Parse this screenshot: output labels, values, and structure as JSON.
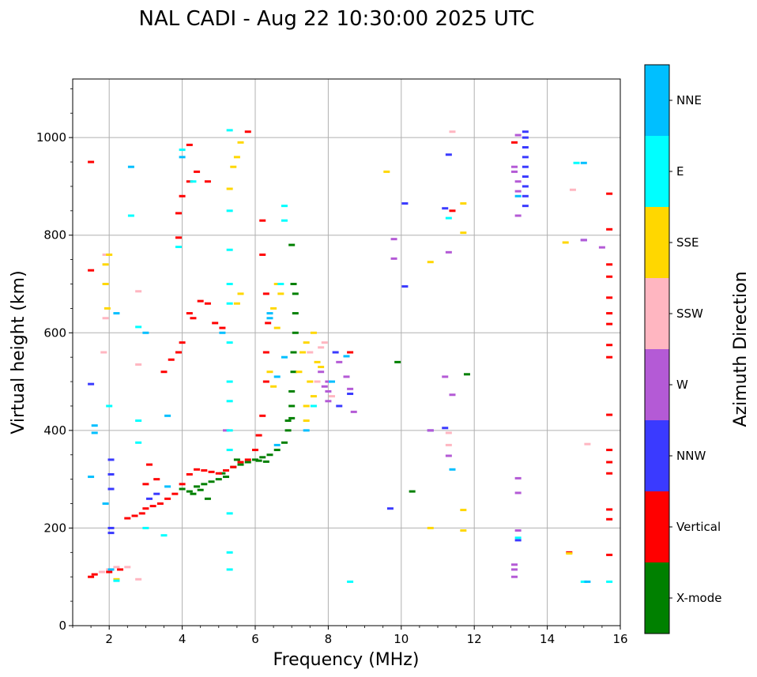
{
  "chart_data": {
    "type": "scatter",
    "title": "NAL CADI - Aug 22 10:30:00 2025 UTC",
    "xlabel": "Frequency (MHz)",
    "ylabel": "Virtual height (km)",
    "xlim": [
      1,
      16
    ],
    "ylim": [
      0,
      1120
    ],
    "x_ticks": [
      2,
      4,
      6,
      8,
      10,
      12,
      14,
      16
    ],
    "y_ticks": [
      0,
      200,
      400,
      600,
      800,
      1000
    ],
    "grid": true,
    "colorbar": {
      "label": "Azimuth Direction",
      "categories": [
        {
          "name": "X-mode",
          "color": "#008000"
        },
        {
          "name": "Vertical",
          "color": "#ff0000"
        },
        {
          "name": "NNW",
          "color": "#3a3aff"
        },
        {
          "name": "W",
          "color": "#b45ad6"
        },
        {
          "name": "SSW",
          "color": "#ffb6c1"
        },
        {
          "name": "SSE",
          "color": "#ffd700"
        },
        {
          "name": "E",
          "color": "#00ffff"
        },
        {
          "name": "NNE",
          "color": "#00bfff"
        }
      ]
    },
    "series": [
      {
        "name": "X-mode",
        "points": [
          [
            4.0,
            280
          ],
          [
            4.2,
            275
          ],
          [
            4.4,
            285
          ],
          [
            4.6,
            290
          ],
          [
            4.8,
            295
          ],
          [
            5.0,
            300
          ],
          [
            5.2,
            305
          ],
          [
            5.4,
            325
          ],
          [
            5.6,
            330
          ],
          [
            5.8,
            335
          ],
          [
            6.0,
            340
          ],
          [
            6.2,
            345
          ],
          [
            6.4,
            350
          ],
          [
            6.6,
            360
          ],
          [
            6.8,
            375
          ],
          [
            6.9,
            400
          ],
          [
            7.0,
            425
          ],
          [
            7.0,
            450
          ],
          [
            7.0,
            480
          ],
          [
            7.05,
            520
          ],
          [
            7.05,
            560
          ],
          [
            7.1,
            600
          ],
          [
            7.1,
            640
          ],
          [
            7.1,
            680
          ],
          [
            7.05,
            700
          ],
          [
            7.0,
            780
          ],
          [
            6.9,
            420
          ],
          [
            4.3,
            270
          ],
          [
            4.5,
            278
          ],
          [
            4.7,
            260
          ],
          [
            5.1,
            312
          ],
          [
            5.5,
            340
          ],
          [
            6.1,
            338
          ],
          [
            6.3,
            336
          ],
          [
            10.3,
            275
          ],
          [
            9.9,
            540
          ],
          [
            11.8,
            515
          ]
        ]
      },
      {
        "name": "Vertical",
        "points": [
          [
            1.5,
            100
          ],
          [
            1.6,
            105
          ],
          [
            2.0,
            110
          ],
          [
            2.3,
            115
          ],
          [
            2.5,
            220
          ],
          [
            2.7,
            225
          ],
          [
            2.9,
            230
          ],
          [
            3.0,
            240
          ],
          [
            3.2,
            245
          ],
          [
            3.4,
            250
          ],
          [
            3.6,
            260
          ],
          [
            3.8,
            270
          ],
          [
            4.0,
            290
          ],
          [
            4.2,
            310
          ],
          [
            4.4,
            320
          ],
          [
            4.6,
            318
          ],
          [
            4.8,
            315
          ],
          [
            5.0,
            312
          ],
          [
            5.2,
            318
          ],
          [
            5.4,
            325
          ],
          [
            5.6,
            335
          ],
          [
            5.8,
            340
          ],
          [
            6.0,
            360
          ],
          [
            6.1,
            390
          ],
          [
            6.2,
            430
          ],
          [
            6.3,
            500
          ],
          [
            6.3,
            560
          ],
          [
            6.35,
            620
          ],
          [
            6.3,
            680
          ],
          [
            6.2,
            760
          ],
          [
            6.2,
            830
          ],
          [
            3.0,
            290
          ],
          [
            3.1,
            330
          ],
          [
            3.3,
            300
          ],
          [
            3.5,
            520
          ],
          [
            3.7,
            545
          ],
          [
            3.9,
            560
          ],
          [
            4.0,
            580
          ],
          [
            4.2,
            640
          ],
          [
            4.3,
            630
          ],
          [
            4.5,
            665
          ],
          [
            4.7,
            660
          ],
          [
            4.9,
            620
          ],
          [
            5.1,
            610
          ],
          [
            3.9,
            795
          ],
          [
            3.9,
            845
          ],
          [
            4.0,
            880
          ],
          [
            4.2,
            910
          ],
          [
            4.4,
            930
          ],
          [
            4.2,
            985
          ],
          [
            4.7,
            910
          ],
          [
            5.8,
            1012
          ],
          [
            1.5,
            950
          ],
          [
            1.5,
            728
          ],
          [
            15.7,
            885
          ],
          [
            15.7,
            812
          ],
          [
            15.7,
            740
          ],
          [
            15.7,
            715
          ],
          [
            15.7,
            672
          ],
          [
            15.7,
            640
          ],
          [
            15.7,
            618
          ],
          [
            15.7,
            575
          ],
          [
            15.7,
            550
          ],
          [
            15.7,
            432
          ],
          [
            15.7,
            360
          ],
          [
            15.7,
            335
          ],
          [
            15.7,
            312
          ],
          [
            15.7,
            238
          ],
          [
            15.7,
            218
          ],
          [
            15.7,
            145
          ],
          [
            14.6,
            150
          ],
          [
            13.1,
            990
          ],
          [
            11.4,
            850
          ],
          [
            8.6,
            560
          ]
        ]
      },
      {
        "name": "NNW",
        "points": [
          [
            1.5,
            495
          ],
          [
            2.05,
            340
          ],
          [
            2.05,
            310
          ],
          [
            2.05,
            280
          ],
          [
            2.05,
            200
          ],
          [
            2.05,
            190
          ],
          [
            3.1,
            260
          ],
          [
            3.3,
            270
          ],
          [
            13.4,
            860
          ],
          [
            13.4,
            880
          ],
          [
            13.4,
            900
          ],
          [
            13.4,
            920
          ],
          [
            13.4,
            940
          ],
          [
            13.4,
            960
          ],
          [
            13.4,
            980
          ],
          [
            13.4,
            1000
          ],
          [
            13.4,
            1012
          ],
          [
            13.2,
            175
          ],
          [
            10.1,
            865
          ],
          [
            10.1,
            695
          ],
          [
            11.2,
            405
          ],
          [
            11.3,
            965
          ],
          [
            11.2,
            855
          ],
          [
            8.6,
            475
          ],
          [
            8.3,
            450
          ],
          [
            10.8,
            400
          ],
          [
            9.7,
            240
          ],
          [
            8.2,
            560
          ],
          [
            15.0,
            790
          ]
        ]
      },
      {
        "name": "W",
        "points": [
          [
            8.0,
            460
          ],
          [
            8.0,
            500
          ],
          [
            8.0,
            480
          ],
          [
            7.8,
            520
          ],
          [
            7.9,
            490
          ],
          [
            8.3,
            540
          ],
          [
            8.5,
            510
          ],
          [
            8.6,
            485
          ],
          [
            8.7,
            438
          ],
          [
            13.2,
            840
          ],
          [
            13.2,
            1005
          ],
          [
            13.1,
            940
          ],
          [
            13.1,
            930
          ],
          [
            13.2,
            910
          ],
          [
            13.2,
            890
          ],
          [
            13.2,
            302
          ],
          [
            13.2,
            272
          ],
          [
            13.2,
            195
          ],
          [
            13.1,
            125
          ],
          [
            13.1,
            115
          ],
          [
            13.1,
            100
          ],
          [
            15.5,
            775
          ],
          [
            15.0,
            790
          ],
          [
            11.3,
            765
          ],
          [
            11.3,
            348
          ],
          [
            11.2,
            510
          ],
          [
            11.4,
            473
          ],
          [
            9.8,
            792
          ],
          [
            9.8,
            752
          ],
          [
            10.8,
            400
          ],
          [
            5.2,
            400
          ]
        ]
      },
      {
        "name": "SSW",
        "points": [
          [
            1.8,
            110
          ],
          [
            2.0,
            115
          ],
          [
            2.2,
            120
          ],
          [
            1.9,
            630
          ],
          [
            1.9,
            760
          ],
          [
            2.5,
            120
          ],
          [
            7.6,
            450
          ],
          [
            7.5,
            560
          ],
          [
            7.8,
            570
          ],
          [
            7.9,
            580
          ],
          [
            7.7,
            500
          ],
          [
            8.1,
            470
          ],
          [
            11.4,
            1012
          ],
          [
            14.7,
            893
          ],
          [
            15.1,
            372
          ],
          [
            11.3,
            395
          ],
          [
            11.3,
            370
          ],
          [
            2.8,
            685
          ],
          [
            2.8,
            535
          ],
          [
            1.85,
            560
          ],
          [
            2.8,
            95
          ]
        ]
      },
      {
        "name": "SSE",
        "points": [
          [
            7.2,
            520
          ],
          [
            7.3,
            560
          ],
          [
            7.4,
            580
          ],
          [
            7.6,
            600
          ],
          [
            7.7,
            540
          ],
          [
            7.8,
            530
          ],
          [
            7.5,
            500
          ],
          [
            7.6,
            470
          ],
          [
            7.4,
            420
          ],
          [
            7.4,
            450
          ],
          [
            6.6,
            700
          ],
          [
            6.7,
            680
          ],
          [
            6.5,
            650
          ],
          [
            6.6,
            610
          ],
          [
            6.4,
            520
          ],
          [
            6.5,
            490
          ],
          [
            5.5,
            660
          ],
          [
            5.6,
            680
          ],
          [
            5.5,
            960
          ],
          [
            5.4,
            940
          ],
          [
            5.6,
            990
          ],
          [
            5.3,
            895
          ],
          [
            1.9,
            740
          ],
          [
            1.9,
            700
          ],
          [
            2.2,
            95
          ],
          [
            2.0,
            760
          ],
          [
            10.8,
            745
          ],
          [
            10.8,
            200
          ],
          [
            11.7,
            805
          ],
          [
            11.7,
            865
          ],
          [
            11.7,
            237
          ],
          [
            11.7,
            195
          ],
          [
            14.5,
            785
          ],
          [
            14.6,
            148
          ],
          [
            9.6,
            930
          ],
          [
            1.95,
            650
          ]
        ]
      },
      {
        "name": "E",
        "points": [
          [
            5.3,
            1015
          ],
          [
            5.3,
            850
          ],
          [
            5.3,
            770
          ],
          [
            5.3,
            700
          ],
          [
            5.3,
            660
          ],
          [
            5.3,
            580
          ],
          [
            5.3,
            500
          ],
          [
            5.3,
            460
          ],
          [
            5.3,
            400
          ],
          [
            5.3,
            360
          ],
          [
            5.3,
            230
          ],
          [
            5.3,
            150
          ],
          [
            5.3,
            115
          ],
          [
            4.0,
            975
          ],
          [
            4.3,
            910
          ],
          [
            3.9,
            776
          ],
          [
            2.6,
            840
          ],
          [
            2.8,
            612
          ],
          [
            2.8,
            420
          ],
          [
            2.8,
            375
          ],
          [
            3.0,
            200
          ],
          [
            2.2,
            92
          ],
          [
            6.7,
            700
          ],
          [
            6.8,
            860
          ],
          [
            6.8,
            830
          ],
          [
            8.6,
            90
          ],
          [
            11.3,
            835
          ],
          [
            13.2,
            180
          ],
          [
            14.8,
            948
          ],
          [
            15.0,
            90
          ],
          [
            15.7,
            90
          ],
          [
            3.5,
            185
          ],
          [
            2.0,
            450
          ],
          [
            7.6,
            450
          ]
        ]
      },
      {
        "name": "NNE",
        "points": [
          [
            1.6,
            410
          ],
          [
            1.6,
            395
          ],
          [
            1.5,
            305
          ],
          [
            1.9,
            250
          ],
          [
            2.2,
            640
          ],
          [
            2.6,
            940
          ],
          [
            4.0,
            960
          ],
          [
            3.6,
            430
          ],
          [
            3.6,
            285
          ],
          [
            6.8,
            550
          ],
          [
            6.4,
            640
          ],
          [
            6.4,
            630
          ],
          [
            6.6,
            510
          ],
          [
            6.6,
            370
          ],
          [
            8.1,
            500
          ],
          [
            8.5,
            552
          ],
          [
            11.4,
            320
          ],
          [
            13.2,
            880
          ],
          [
            15.0,
            948
          ],
          [
            15.1,
            90
          ],
          [
            2.05,
            115
          ],
          [
            3.0,
            600
          ],
          [
            5.1,
            600
          ],
          [
            7.4,
            400
          ]
        ]
      }
    ]
  }
}
